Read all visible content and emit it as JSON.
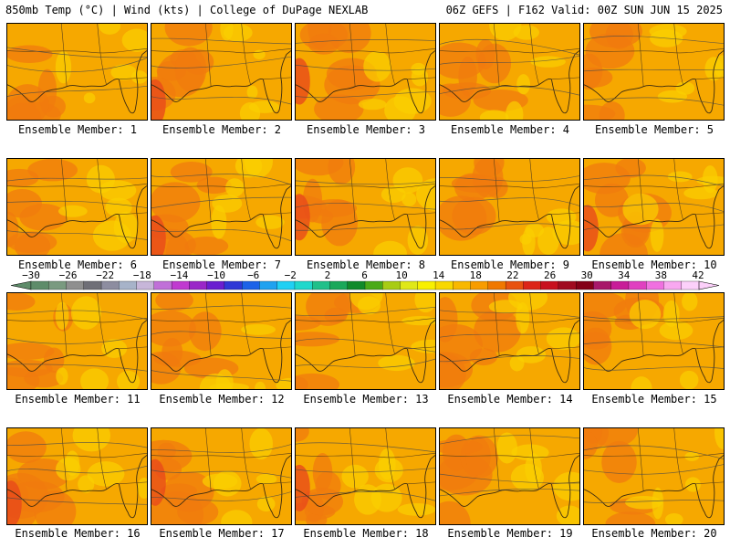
{
  "header": {
    "left": "850mb Temp (°C) | Wind (kts) | College of DuPage NEXLAB",
    "right": "06Z GEFS | F162 Valid: 00Z SUN JUN 15 2025"
  },
  "colors": {
    "base": "#f6a800",
    "warm": "#f07b0e",
    "cool": "#fbd000",
    "hot": "#e84a1a"
  },
  "colorbar": {
    "ticks": [
      "−30",
      "−26",
      "−22",
      "−18",
      "−14",
      "−10",
      "−6",
      "−2",
      "2",
      "6",
      "10",
      "14",
      "18",
      "22",
      "26",
      "30",
      "34",
      "38",
      "42"
    ],
    "colors": [
      "#5e8c6a",
      "#7a9a80",
      "#8f8f8f",
      "#6f6f77",
      "#8d8da0",
      "#a7b3c9",
      "#c7b6d9",
      "#c070d8",
      "#c03ad0",
      "#9a26c8",
      "#6a1ed0",
      "#2f38d6",
      "#1c62e8",
      "#1fa2f0",
      "#20d0f4",
      "#20d8cc",
      "#20c08a",
      "#1aa85a",
      "#108a2a",
      "#4aaa18",
      "#a8cc14",
      "#e0e818",
      "#f8f000",
      "#f8d800",
      "#f8b800",
      "#f89c00",
      "#f07800",
      "#e85210",
      "#dc2418",
      "#c8101e",
      "#a00a20",
      "#840018",
      "#a8186a",
      "#c81c98",
      "#e040c0",
      "#f070e0",
      "#f8a8f0",
      "#fcd0fa"
    ]
  },
  "panels": [
    {
      "label": "Ensemble Member: 1"
    },
    {
      "label": "Ensemble Member: 2"
    },
    {
      "label": "Ensemble Member: 3"
    },
    {
      "label": "Ensemble Member: 4"
    },
    {
      "label": "Ensemble Member: 5"
    },
    {
      "label": "Ensemble Member: 6"
    },
    {
      "label": "Ensemble Member: 7"
    },
    {
      "label": "Ensemble Member: 8"
    },
    {
      "label": "Ensemble Member: 9"
    },
    {
      "label": "Ensemble Member: 10"
    },
    {
      "label": "Ensemble Member: 11"
    },
    {
      "label": "Ensemble Member: 12"
    },
    {
      "label": "Ensemble Member: 13"
    },
    {
      "label": "Ensemble Member: 14"
    },
    {
      "label": "Ensemble Member: 15"
    },
    {
      "label": "Ensemble Member: 16"
    },
    {
      "label": "Ensemble Member: 17"
    },
    {
      "label": "Ensemble Member: 18"
    },
    {
      "label": "Ensemble Member: 19"
    },
    {
      "label": "Ensemble Member: 20"
    }
  ]
}
